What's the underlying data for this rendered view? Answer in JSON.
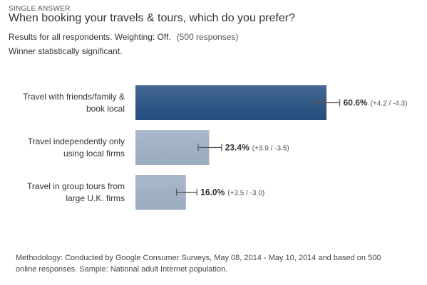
{
  "header": {
    "type_label": "SINGLE ANSWER",
    "question": "When booking your travels & tours, which do you prefer?",
    "results_text": "Results for all respondents. Weighting: Off.",
    "responses_text": "(500 responses)",
    "significance_text": "Winner statistically significant."
  },
  "footer": {
    "methodology": "Methodology: Conducted by Google Consumer Surveys, May 08, 2014 - May 10, 2014 and based on 500 online responses. Sample: National adult Internet population."
  },
  "colors": {
    "winner": "#234d7e",
    "other": "#9aabc0",
    "error_bar": "#555555"
  },
  "chart_data": {
    "type": "bar",
    "orientation": "horizontal",
    "title": "When booking your travels & tours, which do you prefer?",
    "categories": [
      [
        "Travel with friends/family &",
        "book local"
      ],
      [
        "Travel independently only",
        "using local firms"
      ],
      [
        "Travel in group tours from",
        "large U.K. firms"
      ]
    ],
    "values": [
      60.6,
      23.4,
      16.0
    ],
    "value_labels": [
      "60.6%",
      "23.4%",
      "16.0%"
    ],
    "error_labels": [
      "(+4.2 / -4.3)",
      "(+3.9 / -3.5)",
      "(+3.5 / -3.0)"
    ],
    "error_plus": [
      4.2,
      3.9,
      3.5
    ],
    "error_minus": [
      4.3,
      3.5,
      3.0
    ],
    "winner_index": 0,
    "xlim": [
      0,
      100
    ],
    "grid": false,
    "legend": "none"
  }
}
